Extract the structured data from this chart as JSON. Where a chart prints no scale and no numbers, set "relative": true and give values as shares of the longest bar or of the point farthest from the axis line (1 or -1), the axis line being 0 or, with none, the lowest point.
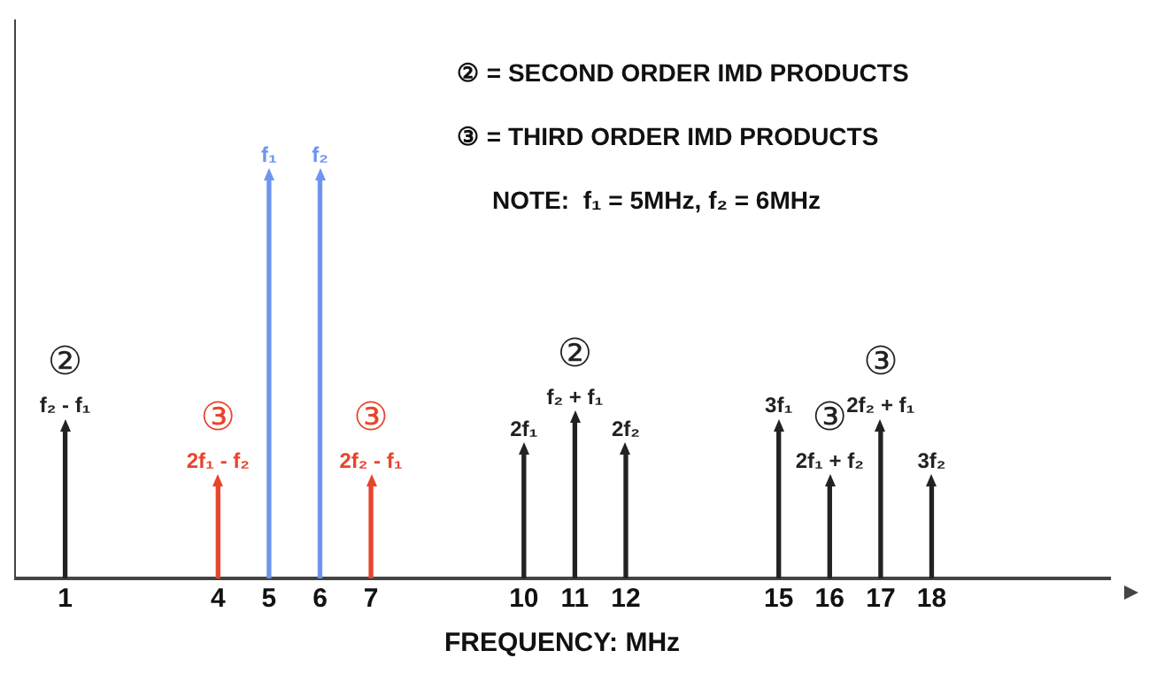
{
  "chart_data": {
    "type": "bar",
    "relative": true,
    "xlabel": "FREQUENCY: MHz",
    "xlim": [
      0,
      21.5
    ],
    "xticks": [
      1,
      4,
      5,
      6,
      7,
      10,
      11,
      12,
      15,
      16,
      17,
      18
    ],
    "grid": false,
    "legend": false,
    "series": [
      {
        "color": "#6f94f0",
        "x": [
          5,
          6
        ],
        "values": [
          1,
          1
        ]
      },
      {
        "color": "#222222",
        "x": [
          1,
          10,
          11,
          12,
          15,
          16,
          17,
          18
        ],
        "values": [
          0.37,
          0.31,
          0.39,
          0.31,
          0.37,
          0.23,
          0.37,
          0.23
        ]
      },
      {
        "color": "#e8452c",
        "x": [
          4,
          7
        ],
        "values": [
          0.23,
          0.23
        ]
      }
    ],
    "annotations": [
      "② = SECOND ORDER IMD PRODUCTS",
      "③ = THIRD ORDER IMD PRODUCTS",
      "NOTE:  f₁ = 5MHz, f₂ = 6MHz",
      {
        "text": "f₁",
        "x": 5,
        "y": 1
      },
      {
        "text": "f₂",
        "x": 6,
        "y": 1
      },
      {
        "text": "f₂ - f₁",
        "x": 1,
        "y": 0.37
      },
      {
        "text": "②",
        "x": 1,
        "y": 0.37
      },
      {
        "text": "2f₁ - f₂",
        "x": 4,
        "y": 0.23
      },
      {
        "text": "③",
        "x": 4,
        "y": 0.23
      },
      {
        "text": "2f₂ - f₁",
        "x": 7,
        "y": 0.23
      },
      {
        "text": "③",
        "x": 7,
        "y": 0.23
      },
      {
        "text": "2f₁",
        "x": 10,
        "y": 0.31
      },
      {
        "text": "f₂ + f₁",
        "x": 11,
        "y": 0.39
      },
      {
        "text": "②",
        "x": 11,
        "y": 0.39
      },
      {
        "text": "2f₂",
        "x": 12,
        "y": 0.31
      },
      {
        "text": "3f₁",
        "x": 15,
        "y": 0.37
      },
      {
        "text": "2f₁ + f₂",
        "x": 16,
        "y": 0.23
      },
      {
        "text": "③",
        "x": 16,
        "y": 0.23
      },
      {
        "text": "2f₂ + f₁",
        "x": 17,
        "y": 0.37
      },
      {
        "text": "③",
        "x": 17,
        "y": 0.37
      },
      {
        "text": "3f₂",
        "x": 18,
        "y": 0.23
      }
    ]
  }
}
